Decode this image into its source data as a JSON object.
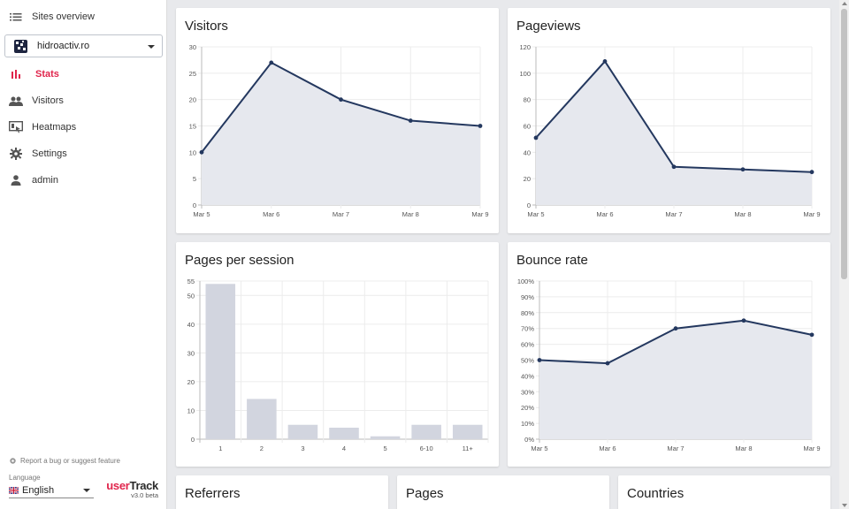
{
  "sidebar": {
    "sites_overview": "Sites overview",
    "site_name": "hidroactiv.ro",
    "nav": [
      {
        "label": "Stats",
        "icon": "bar-chart-icon"
      },
      {
        "label": "Visitors",
        "icon": "people-icon"
      },
      {
        "label": "Heatmaps",
        "icon": "heatmap-icon"
      },
      {
        "label": "Settings",
        "icon": "gear-icon"
      },
      {
        "label": "admin",
        "icon": "person-icon"
      }
    ],
    "report_link": "Report a bug or suggest feature",
    "language_label": "Language",
    "language_value": "English",
    "brand_user": "user",
    "brand_track": "Track",
    "version": "v3.0 beta"
  },
  "colors": {
    "accent": "#e0254c",
    "line": "#24385f",
    "area": "#e6e8ee",
    "bar": "#d2d5df"
  },
  "cards": {
    "visitors": "Visitors",
    "pageviews": "Pageviews",
    "pages_per_session": "Pages per session",
    "bounce_rate": "Bounce rate",
    "referrers": "Referrers",
    "pages": "Pages",
    "countries": "Countries"
  },
  "chart_data": [
    {
      "id": "visitors",
      "type": "area",
      "title": "Visitors",
      "categories": [
        "Mar 5",
        "Mar 6",
        "Mar 7",
        "Mar 8",
        "Mar 9"
      ],
      "values": [
        10,
        27,
        20,
        16,
        15
      ],
      "yticks": [
        "0",
        "5",
        "10",
        "15",
        "20",
        "25",
        "30"
      ],
      "ylim": [
        0,
        30
      ],
      "grid": true
    },
    {
      "id": "pageviews",
      "type": "area",
      "title": "Pageviews",
      "categories": [
        "Mar 5",
        "Mar 6",
        "Mar 7",
        "Mar 8",
        "Mar 9"
      ],
      "values": [
        51,
        109,
        29,
        27,
        25
      ],
      "yticks": [
        "0",
        "20",
        "40",
        "60",
        "80",
        "100",
        "120"
      ],
      "ylim": [
        0,
        120
      ],
      "grid": true
    },
    {
      "id": "pages_per_session",
      "type": "bar",
      "title": "Pages per session",
      "categories": [
        "1",
        "2",
        "3",
        "4",
        "5",
        "6-10",
        "11+"
      ],
      "values": [
        54,
        14,
        5,
        4,
        1,
        5,
        5
      ],
      "yticks": [
        "0",
        "10",
        "20",
        "30",
        "40",
        "50",
        "55"
      ],
      "ylim": [
        0,
        55
      ],
      "grid": true
    },
    {
      "id": "bounce_rate",
      "type": "area",
      "title": "Bounce rate",
      "categories": [
        "Mar 5",
        "Mar 6",
        "Mar 7",
        "Mar 8",
        "Mar 9"
      ],
      "values": [
        50,
        48,
        70,
        75,
        66
      ],
      "yticks": [
        "0%",
        "10%",
        "20%",
        "30%",
        "40%",
        "50%",
        "60%",
        "70%",
        "80%",
        "90%",
        "100%"
      ],
      "ylim": [
        0,
        100
      ],
      "grid": true
    }
  ]
}
